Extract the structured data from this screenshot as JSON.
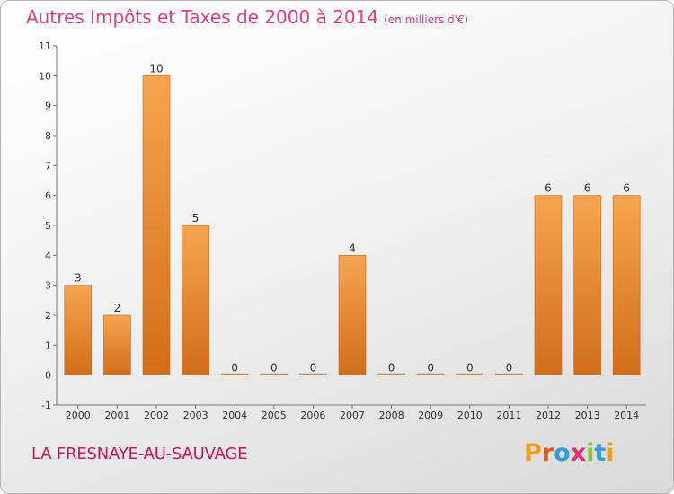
{
  "header": {
    "title": "Autres Impôts et Taxes de 2000 à 2014",
    "unit": "(en milliers d'€)"
  },
  "footer": {
    "commune": "LA FRESNAYE-AU-SAUVAGE",
    "brand_letters": [
      "P",
      "r",
      "o",
      "x",
      "i",
      "t",
      "i"
    ],
    "brand_colors": [
      "#f0a020",
      "#e05a1a",
      "#3a9ad9",
      "#e03070",
      "#8cc63f",
      "#3a9ad9",
      "#f0a020"
    ]
  },
  "colors": {
    "bar_light": "#f6a550",
    "bar_dark": "#d26d18",
    "title": "#e0407c",
    "commune": "#c9185a"
  },
  "chart_data": {
    "type": "bar",
    "categories": [
      "2000",
      "2001",
      "2002",
      "2003",
      "2004",
      "2005",
      "2006",
      "2007",
      "2008",
      "2009",
      "2010",
      "2011",
      "2012",
      "2013",
      "2014"
    ],
    "values": [
      3,
      2,
      10,
      5,
      0,
      0,
      0,
      4,
      0,
      0,
      0,
      0,
      6,
      6,
      6
    ],
    "data_labels": [
      "3",
      "2",
      "10",
      "5",
      "0",
      "0",
      "0",
      "4",
      "0",
      "0",
      "0",
      "0",
      "6",
      "6",
      "6"
    ],
    "title": "Autres Impôts et Taxes de 2000 à 2014",
    "subtitle": "(en milliers d'€)",
    "ylim": [
      -1,
      11
    ],
    "yticks": [
      -1,
      0,
      1,
      2,
      3,
      4,
      5,
      6,
      7,
      8,
      9,
      10,
      11
    ],
    "grid": false,
    "legend": "none"
  }
}
